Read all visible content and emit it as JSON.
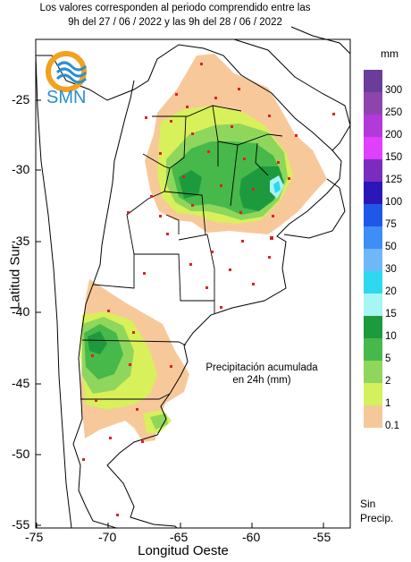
{
  "header": {
    "line1": "Los valores corresponden al periodo comprendido entre las",
    "line2": "9h del 27 / 06 / 2022  y las 9h del 28 / 06 / 2022"
  },
  "logo": {
    "text": "SMN",
    "colors": {
      "orange": "#f2a21b",
      "blue": "#2a8fcf"
    }
  },
  "axes": {
    "ylabel": "Latitud Sur",
    "xlabel": "Longitud Oeste",
    "xticks": [
      "-75",
      "-70",
      "-65",
      "-60",
      "-55"
    ],
    "yticks": [
      "-25",
      "-30",
      "-35",
      "-40",
      "-45",
      "-50",
      "-55"
    ],
    "xlim": [
      -75,
      -53
    ],
    "ylim": [
      -55.2,
      -21
    ]
  },
  "annotation": {
    "line1": "Precipitación acumulada",
    "line2": "en 24h (mm)"
  },
  "legend": {
    "unit": "mm",
    "items": [
      {
        "label": "300",
        "color": "#6a3d9a"
      },
      {
        "label": "250",
        "color": "#8e44ad"
      },
      {
        "label": "200",
        "color": "#b23ad8"
      },
      {
        "label": "150",
        "color": "#e040fb"
      },
      {
        "label": "125",
        "color": "#7b2cbf"
      },
      {
        "label": "100",
        "color": "#2b17b8"
      },
      {
        "label": "75",
        "color": "#1f57e8"
      },
      {
        "label": "50",
        "color": "#3d8ef5"
      },
      {
        "label": "30",
        "color": "#6fb8f7"
      },
      {
        "label": "20",
        "color": "#2ed8f0"
      },
      {
        "label": "15",
        "color": "#a8f5f5"
      },
      {
        "label": "10",
        "color": "#1e9a3e"
      },
      {
        "label": "5",
        "color": "#47b84a"
      },
      {
        "label": "2",
        "color": "#8fd65c"
      },
      {
        "label": "1",
        "color": "#d4f05a"
      },
      {
        "label": "0.1",
        "color": "#f5c89a"
      }
    ],
    "sin_precip_1": "Sin",
    "sin_precip_2": "Precip."
  }
}
